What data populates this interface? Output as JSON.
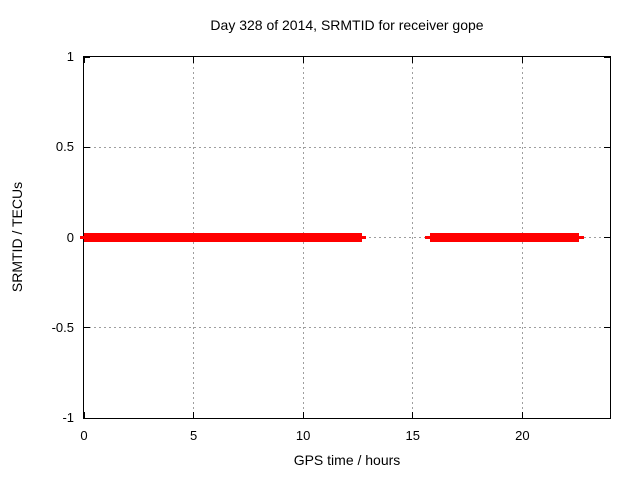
{
  "chart_data": {
    "type": "line",
    "title": "Day 328 of 2014, SRMTID for receiver gope",
    "xlabel": "GPS time / hours",
    "ylabel": "SRMTID / TECUs",
    "xlim": [
      0,
      24
    ],
    "ylim": [
      -1,
      1
    ],
    "xticks": [
      0,
      5,
      10,
      15,
      20
    ],
    "xtick_labels": [
      "0",
      "5",
      "10",
      "15",
      "20"
    ],
    "yticks": [
      1,
      0.5,
      0,
      -0.5,
      -1
    ],
    "ytick_labels": [
      "1",
      "0.5",
      "0",
      "-0.5",
      "-1"
    ],
    "grid": true,
    "legend": "none",
    "colors": {
      "line": "#ff0000",
      "grid": "#9e9e9e",
      "axis": "#000000",
      "background": "#ffffff"
    },
    "series": [
      {
        "name": "SRMTID thin trace",
        "y": 0,
        "width": "thin",
        "segments": [
          [
            -0.2,
            12.87
          ],
          [
            15.58,
            22.83
          ]
        ]
      },
      {
        "name": "SRMTID thick trace",
        "y": 0,
        "width": "thick",
        "segments": [
          [
            0,
            12.68
          ],
          [
            15.77,
            22.6
          ]
        ]
      }
    ]
  }
}
